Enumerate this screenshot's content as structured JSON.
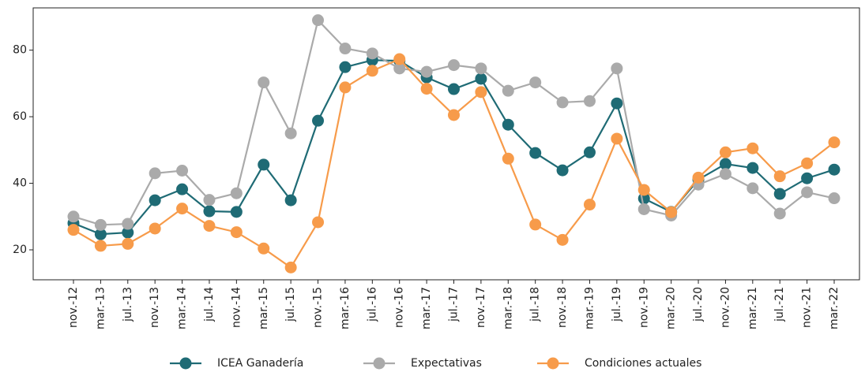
{
  "chart_data": {
    "type": "line",
    "categories": [
      "nov.-12",
      "mar.-13",
      "jul.-13",
      "nov.-13",
      "mar.-14",
      "jul.-14",
      "nov.-14",
      "mar.-15",
      "jul.-15",
      "nov.-15",
      "mar.-16",
      "jul.-16",
      "nov.-16",
      "mar.-17",
      "jul.-17",
      "nov.-17",
      "mar.-18",
      "jul.-18",
      "nov.-18",
      "mar.-19",
      "jul.-19",
      "nov.-19",
      "mar.-20",
      "jul.-20",
      "nov.-20",
      "mar.-21",
      "jul.-21",
      "nov.-21",
      "mar.-22"
    ],
    "series": [
      {
        "name": "ICEA Ganadería",
        "color": "#1f6b75",
        "values": [
          28,
          24.7,
          25.2,
          34.9,
          38.2,
          31.6,
          31.4,
          45.6,
          34.9,
          58.8,
          74.9,
          77,
          76.8,
          71.8,
          68.3,
          71.4,
          57.6,
          49.1,
          43.9,
          49.3,
          64,
          35.4,
          31.4,
          41.1,
          45.8,
          44.6,
          36.8,
          41.5,
          44.1
        ]
      },
      {
        "name": "Expectativas",
        "color": "#aaaaaa",
        "values": [
          30,
          27.5,
          27.8,
          43,
          43.8,
          35,
          37,
          70.3,
          55,
          89,
          80.5,
          79,
          74.5,
          73.5,
          75.5,
          74.5,
          67.8,
          70.3,
          64.3,
          64.7,
          74.5,
          32.2,
          30.3,
          39.6,
          42.8,
          38.5,
          30.9,
          37.3,
          35.5
        ]
      },
      {
        "name": "Condiciones actuales",
        "color": "#f79b4a",
        "values": [
          26,
          21.2,
          21.8,
          26.4,
          32.4,
          27.2,
          25.3,
          20.4,
          14.7,
          28.3,
          68.8,
          73.8,
          77.3,
          68.4,
          60.5,
          67.4,
          47.4,
          27.6,
          23,
          33.6,
          53.4,
          38,
          31.3,
          41.7,
          49.3,
          50.5,
          42.1,
          46,
          52.3
        ]
      }
    ],
    "ylim": [
      11,
      92.7
    ],
    "yticks": [
      20,
      40,
      60,
      80
    ],
    "legend": "bottom"
  }
}
